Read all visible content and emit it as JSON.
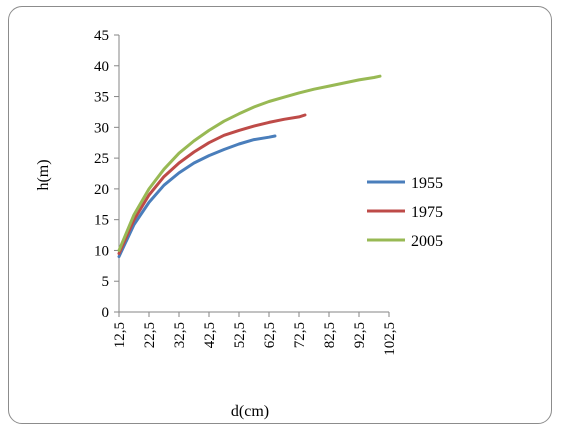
{
  "chart_data": {
    "type": "line",
    "xlabel": "d(cm)",
    "ylabel": "h(m)",
    "xlim": [
      12.5,
      102.5
    ],
    "ylim": [
      0,
      45
    ],
    "x_ticks": [
      "12,5",
      "22,5",
      "32,5",
      "42,5",
      "52,5",
      "62,5",
      "72,5",
      "82,5",
      "92,5",
      "102,5"
    ],
    "y_ticks": [
      "0",
      "5",
      "10",
      "15",
      "20",
      "25",
      "30",
      "35",
      "40",
      "45"
    ],
    "legend_position": "right",
    "grid": false,
    "series": [
      {
        "name": "1955",
        "color": "#4a7ebb",
        "x": [
          12.5,
          17.5,
          22.5,
          27.5,
          32.5,
          37.5,
          42.5,
          47.5,
          52.5,
          57.5,
          62.5,
          64.5
        ],
        "y": [
          9,
          14.2,
          17.8,
          20.6,
          22.6,
          24.2,
          25.4,
          26.4,
          27.3,
          28.0,
          28.4,
          28.6
        ]
      },
      {
        "name": "1975",
        "color": "#be4b48",
        "x": [
          12.5,
          17.5,
          22.5,
          27.5,
          32.5,
          37.5,
          42.5,
          47.5,
          52.5,
          57.5,
          62.5,
          67.5,
          72.5,
          74.5
        ],
        "y": [
          9.5,
          15,
          19,
          22,
          24.2,
          26,
          27.5,
          28.7,
          29.5,
          30.2,
          30.8,
          31.3,
          31.7,
          32
        ]
      },
      {
        "name": "2005",
        "color": "#98b954",
        "x": [
          12.5,
          17.5,
          22.5,
          27.5,
          32.5,
          37.5,
          42.5,
          47.5,
          52.5,
          57.5,
          62.5,
          67.5,
          72.5,
          77.5,
          82.5,
          87.5,
          92.5,
          97.5,
          99.5
        ],
        "y": [
          10,
          15.8,
          20,
          23.2,
          25.8,
          27.8,
          29.5,
          31,
          32.2,
          33.3,
          34.2,
          34.9,
          35.6,
          36.2,
          36.7,
          37.2,
          37.7,
          38.1,
          38.3
        ]
      }
    ]
  }
}
